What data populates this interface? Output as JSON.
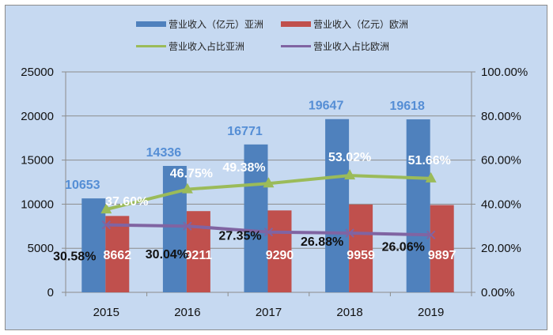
{
  "chart_data": {
    "type": "bar+line",
    "categories": [
      "2015",
      "2016",
      "2017",
      "2018",
      "2019"
    ],
    "series": [
      {
        "name": "营业收入（亿元）亚洲",
        "type": "bar",
        "axis": "left",
        "color": "#4f81bd",
        "values": [
          10653,
          14336,
          16771,
          19647,
          19618
        ]
      },
      {
        "name": "营业收入（亿元）欧洲",
        "type": "bar",
        "axis": "left",
        "color": "#c0504d",
        "values": [
          8662,
          9211,
          9290,
          9959,
          9897
        ]
      },
      {
        "name": "营业收入占比亚洲",
        "type": "line",
        "axis": "right",
        "marker": "triangle",
        "color": "#9bbb59",
        "values": [
          37.6,
          46.75,
          49.38,
          53.02,
          51.66
        ],
        "labels": [
          "37.60%",
          "46.75%",
          "49.38%",
          "53.02%",
          "51.66%"
        ]
      },
      {
        "name": "营业收入占比欧洲",
        "type": "line",
        "axis": "right",
        "marker": "x",
        "color": "#8064a2",
        "values": [
          30.58,
          30.04,
          27.35,
          26.88,
          26.06
        ],
        "labels": [
          "30.58%",
          "30.04%",
          "27.35%",
          "26.88%",
          "26.06%"
        ]
      }
    ],
    "left_axis": {
      "range": [
        0,
        25000
      ],
      "ticks": [
        "0",
        "5000",
        "10000",
        "15000",
        "20000",
        "25000"
      ]
    },
    "right_axis": {
      "range": [
        0,
        100
      ],
      "ticks": [
        "0.00%",
        "20.00%",
        "40.00%",
        "60.00%",
        "80.00%",
        "100.00%"
      ]
    },
    "grid": true,
    "legend_position": "top"
  }
}
